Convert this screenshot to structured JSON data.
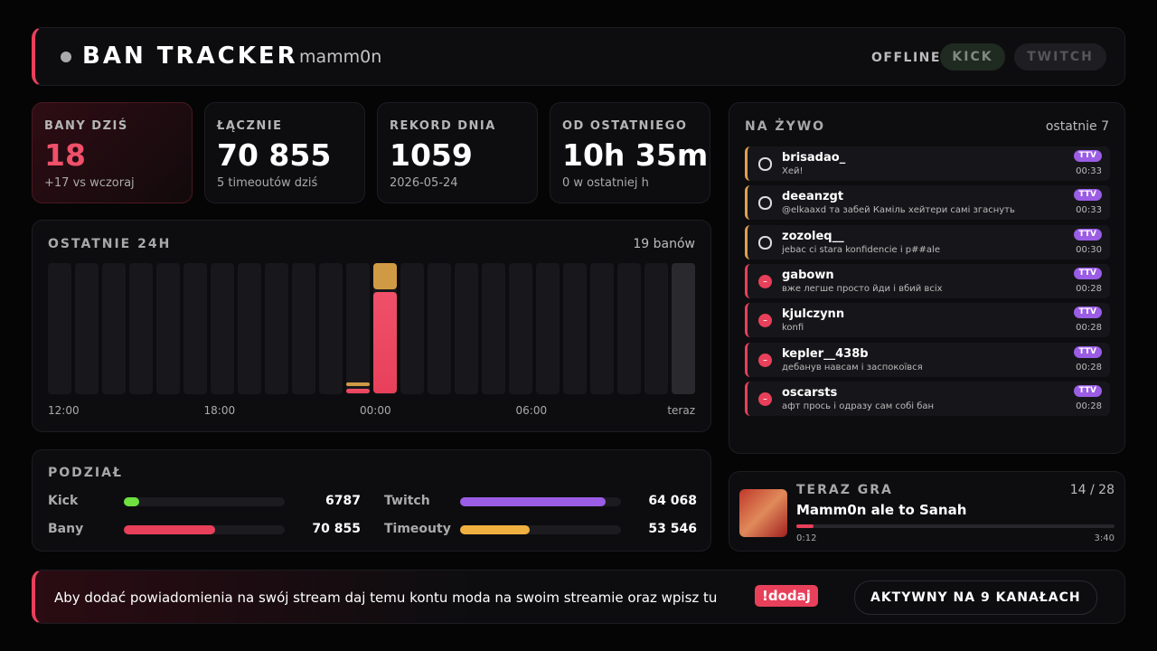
{
  "header": {
    "title": "BAN TRACKER",
    "user": "mamm0n",
    "status": "OFFLINE",
    "buttons": [
      "KICK",
      "TWITCH"
    ]
  },
  "stats": [
    {
      "label": "BANY DZIŚ",
      "value": "18",
      "sub": "+17 vs wczoraj"
    },
    {
      "label": "ŁĄCZNIE",
      "value": "70 855",
      "sub": "5 timeoutów dziś"
    },
    {
      "label": "REKORD DNIA",
      "value": "1059",
      "sub": "2026-05-24"
    },
    {
      "label": "OD OSTATNIEGO",
      "value": "10h 35m",
      "sub": "0 w ostatniej h"
    }
  ],
  "activity": {
    "title": "OSTATNIE 24H",
    "summary": "19 banów",
    "bans": {
      "color": "#e8405a",
      "values": [
        0,
        0,
        0,
        0,
        0,
        0,
        0,
        0,
        0,
        0,
        0,
        1,
        18,
        0,
        0,
        0,
        0,
        0,
        0,
        0,
        0,
        0,
        0,
        0
      ]
    },
    "timeouts": {
      "color": "#d09a44",
      "values": [
        0,
        0,
        0,
        0,
        0,
        0,
        0,
        0,
        0,
        0,
        0,
        1,
        5,
        0,
        0,
        0,
        0,
        0,
        0,
        0,
        0,
        0,
        0,
        0
      ]
    },
    "xlabels": [
      "12:00",
      "18:00",
      "00:00",
      "06:00",
      "teraz"
    ]
  },
  "split": {
    "title": "PODZIAŁ",
    "rows": [
      [
        {
          "label": "Kick",
          "value": {
            "value": 6787,
            "label": "6787"
          },
          "color": "#6ee040"
        },
        {
          "label": "Twitch",
          "value": {
            "value": 64068,
            "label": "64 068"
          },
          "color": "#9b5de5"
        }
      ],
      [
        {
          "label": "Bany",
          "value": {
            "value": 70855,
            "label": "70 855"
          },
          "color": "#e8405a"
        },
        {
          "label": "Timeouty",
          "value": {
            "value": 53546,
            "label": "53 546"
          },
          "color": "#f0b040"
        }
      ]
    ]
  },
  "feed": {
    "title": "NA ŻYWO",
    "note": "ostatnie 7",
    "items": [
      {
        "kind": "timeout",
        "name": "brisadao_",
        "msg": "Хей!",
        "badge": "TTV",
        "time": "00:33"
      },
      {
        "kind": "timeout",
        "name": "deeanzgt",
        "msg": "@elkaaxd та забей Каміль хейтери самі згаснуть",
        "badge": "TTV",
        "time": "00:33"
      },
      {
        "kind": "timeout",
        "name": "zozoleq__",
        "msg": "jebac ci stara konfidencie i p##ale",
        "badge": "TTV",
        "time": "00:30"
      },
      {
        "kind": "ban",
        "name": "gabown",
        "msg": "вже легше просто йди і вбий всіх",
        "badge": "TTV",
        "time": "00:28"
      },
      {
        "kind": "ban",
        "name": "kjulczynn",
        "msg": "konfi",
        "badge": "TTV",
        "time": "00:28"
      },
      {
        "kind": "ban",
        "name": "kepler__438b",
        "msg": "дебанув навсам і заспокоївся",
        "badge": "TTV",
        "time": "00:28"
      },
      {
        "kind": "ban",
        "name": "oscarsts",
        "msg": "афт прось і одразу сам собі бан",
        "badge": "TTV",
        "time": "00:28"
      }
    ]
  },
  "player": {
    "title": "TERAZ GRA",
    "position": "14 / 28",
    "track": "Mamm0n ale to Sanah",
    "elapsed": {
      "value": 12,
      "label": "0:12"
    },
    "duration": {
      "value": 220,
      "label": "3:40"
    }
  },
  "footer": {
    "text": "Aby dodać powiadomienia na swój stream daj temu kontu moda na swoim streamie oraz wpisz tu",
    "command": "!dodaj",
    "channels": "AKTYWNY NA 9 KANAŁACH"
  }
}
